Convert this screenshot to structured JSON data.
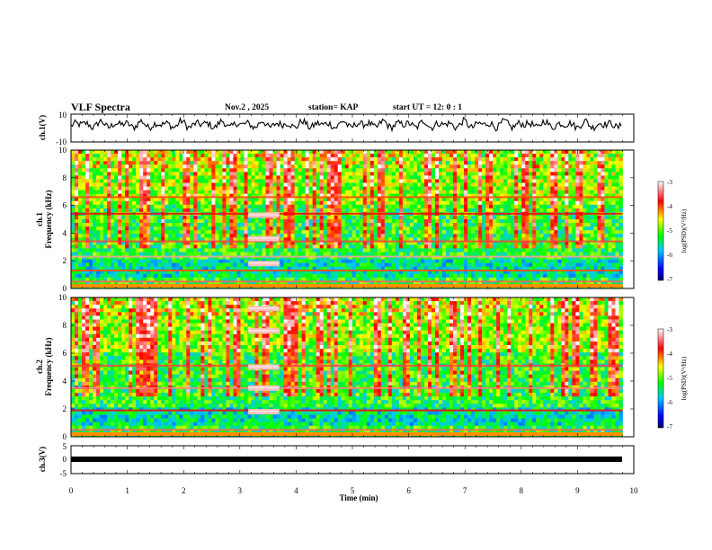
{
  "header": {
    "title": "VLF Spectra",
    "date": "Nov.2 , 2025",
    "station": "station= KAP",
    "start": "start UT = 12: 0 : 1"
  },
  "chart_data": [
    {
      "type": "line",
      "name": "ch1-waveform",
      "ylabel": "ch.1(V)",
      "ylim": [
        -10,
        10
      ],
      "yticks": [
        "10",
        "-10"
      ],
      "xlim": [
        0,
        9.8
      ],
      "note": "noisy waveform oscillating roughly between -2 and 7 V"
    },
    {
      "type": "heatmap",
      "name": "ch1-spectrogram",
      "ylabel": "ch.1\nFrequency (kHz)",
      "ylim": [
        0,
        10
      ],
      "yticks": [
        "0",
        "2",
        "4",
        "6",
        "8",
        "10"
      ],
      "xlim": [
        0,
        9.8
      ],
      "colorbar": {
        "label": "log(PSD)(V²/Hz)",
        "range": [
          -7,
          -3
        ],
        "ticks": [
          "-3",
          "-4",
          "-5",
          "-6",
          "-7"
        ]
      },
      "features": [
        {
          "kind": "band",
          "freq_khz": 0.5,
          "level": -3.5
        },
        {
          "kind": "band",
          "freq_khz": 1.3,
          "level": -4.0
        },
        {
          "kind": "band",
          "freq_khz": 2.3,
          "level": -3.3
        },
        {
          "kind": "band",
          "freq_khz": 3.4,
          "level": -3.6
        },
        {
          "kind": "band",
          "freq_khz": 5.4,
          "level": -3.8
        },
        {
          "kind": "band",
          "freq_khz": 6.6,
          "level": -4.0
        },
        {
          "kind": "burst",
          "t_start_min": 3.15,
          "t_end_min": 3.7,
          "freq_khz": [
            1.8,
            3.6,
            5.3
          ],
          "level": -3.2
        }
      ]
    },
    {
      "type": "heatmap",
      "name": "ch2-spectrogram",
      "ylabel": "ch.2\nFrequency (kHz)",
      "ylim": [
        0,
        10
      ],
      "yticks": [
        "0",
        "2",
        "4",
        "6",
        "8",
        "10"
      ],
      "xlim": [
        0,
        9.8
      ],
      "colorbar": {
        "label": "log(PSD)(V²/Hz)",
        "range": [
          -7,
          -3
        ],
        "ticks": [
          "-3",
          "-4",
          "-5",
          "-6",
          "-7"
        ]
      },
      "features": [
        {
          "kind": "band",
          "freq_khz": 0.5,
          "level": -3.5
        },
        {
          "kind": "band",
          "freq_khz": 1.9,
          "level": -3.8
        },
        {
          "kind": "band",
          "freq_khz": 3.5,
          "level": -3.4
        },
        {
          "kind": "band",
          "freq_khz": 5.1,
          "level": -3.6
        },
        {
          "kind": "burst",
          "t_start_min": 3.15,
          "t_end_min": 3.7,
          "freq_khz": [
            1.8,
            3.5,
            5.0,
            7.6,
            9.2
          ],
          "level": -3.2
        }
      ]
    },
    {
      "type": "line",
      "name": "ch3-waveform",
      "ylabel": "ch.3(V)",
      "ylim": [
        -5,
        5
      ],
      "yticks": [
        "5",
        "0",
        "-5"
      ],
      "xlim": [
        0,
        9.8
      ],
      "note": "flat thick trace near 0 V"
    }
  ],
  "xaxis": {
    "label": "Time (min)",
    "range": [
      0,
      10
    ],
    "ticks": [
      "0",
      "1",
      "2",
      "3",
      "4",
      "5",
      "6",
      "7",
      "8",
      "9",
      "10"
    ]
  },
  "colors": {
    "scale": [
      "#000070",
      "#0000ff",
      "#00c8ff",
      "#00ff00",
      "#ffff00",
      "#ff0000",
      "#ffffff"
    ]
  }
}
